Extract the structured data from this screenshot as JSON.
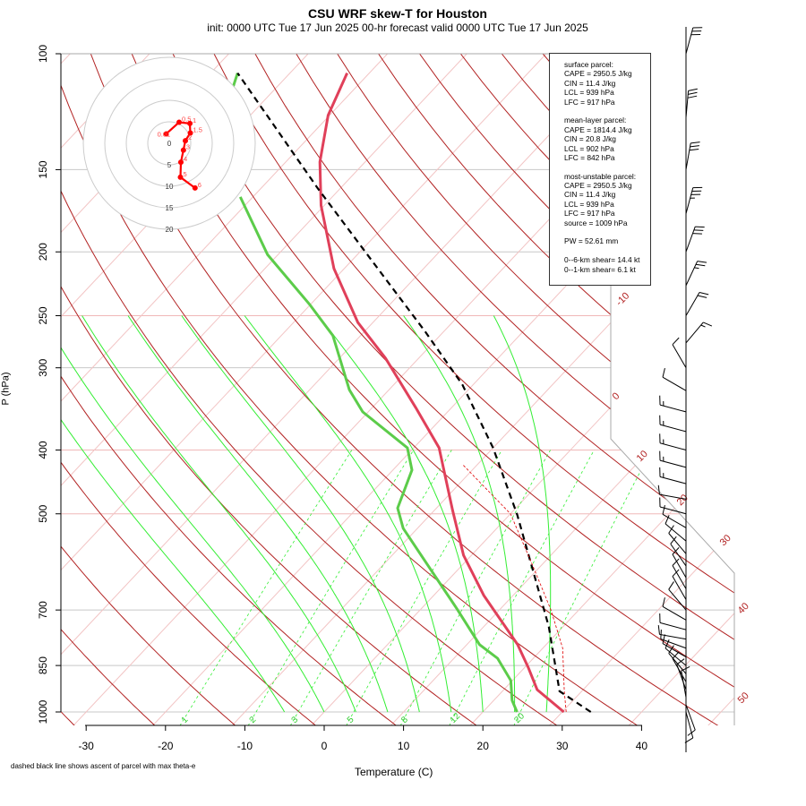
{
  "title": "CSU WRF skew-T for Houston",
  "subtitle": "init: 0000 UTC Tue 17 Jun 2025     00-hr forecast valid 0000 UTC Tue 17 Jun 2025",
  "footnote": "dashed black line shows ascent of parcel with max theta-e",
  "info": {
    "lines": [
      "surface parcel:",
      "CAPE = 2950.5 J/kg",
      "CIN = 11.4 J/kg",
      "LCL = 939 hPa",
      "LFC = 917 hPa",
      "",
      "mean-layer parcel:",
      "CAPE = 1814.4 J/kg",
      "CIN = 20.8 J/kg",
      "LCL = 902 hPa",
      "LFC = 842 hPa",
      "",
      "most-unstable parcel:",
      "CAPE = 2950.5 J/kg",
      "CIN = 11.4 J/kg",
      "LCL = 939 hPa",
      "LFC = 917 hPa",
      "source = 1009 hPa",
      "",
      "PW =  52.61 mm",
      "",
      "0--6-km shear= 14.4 kt",
      "0--1-km shear= 6.1 kt"
    ]
  },
  "chart_data": {
    "type": "line",
    "subtype": "skew-T log-p",
    "xlabel": "Temperature (C)",
    "ylabel": "P (hPa)",
    "x_ticks": [
      "-30",
      "-20",
      "-10",
      "0",
      "10",
      "20",
      "30",
      "40"
    ],
    "x_tick_values": [
      -30,
      -20,
      -10,
      0,
      10,
      20,
      30,
      40
    ],
    "y_ticks": [
      "100",
      "150",
      "200",
      "250",
      "300",
      "400",
      "500",
      "700",
      "850",
      "1000"
    ],
    "y_tick_values": [
      100,
      150,
      200,
      250,
      300,
      400,
      500,
      700,
      850,
      1000
    ],
    "isotherm_labels": [
      "-10",
      "0",
      "10",
      "20",
      "30",
      "40",
      "50"
    ],
    "mixing_ratio_labels": [
      "1",
      "2",
      "3",
      "5",
      "8",
      "12",
      "20"
    ],
    "series": [
      {
        "name": "temperature",
        "color": "#e0405a",
        "p": [
          1000,
          925,
          855,
          790,
          665,
          578,
          494,
          397,
          345,
          290,
          256,
          212,
          170,
          146,
          124,
          107
        ],
        "T": [
          30.2,
          24.2,
          20.4,
          16.4,
          6.3,
          -1.0,
          -7.7,
          -16.8,
          -24.5,
          -34.2,
          -41.9,
          -51.3,
          -60.4,
          -65.7,
          -70.2,
          -72.8
        ]
      },
      {
        "name": "dewpoint",
        "color": "#5ccc4a",
        "p": [
          1000,
          960,
          896,
          829,
          790,
          697,
          635,
          526,
          490,
          429,
          397,
          350,
          324,
          268,
          240,
          202,
          165
        ],
        "T": [
          24.3,
          22.3,
          19.8,
          15.5,
          11.6,
          4.5,
          -0.9,
          -11.8,
          -14.9,
          -17.6,
          -20.8,
          -30.7,
          -35.0,
          -43.5,
          -50.2,
          -61.3,
          -71.6
        ]
      },
      {
        "name": "dewpoint-upper",
        "color": "#5ccc4a",
        "p": [
          115,
          107
        ],
        "T": [
          -85.0,
          -86.6
        ]
      },
      {
        "name": "parcel",
        "color": "#000000",
        "p": [
          1000,
          930,
          742,
          502,
          397,
          318,
          264,
          219,
          160,
          107
        ],
        "T": [
          33.6,
          27.2,
          18.2,
          1.0,
          -10.0,
          -21.4,
          -32.4,
          -43.8,
          -62.9,
          -86.6
        ]
      },
      {
        "name": "parcel-virtual",
        "color": "#e00000",
        "p": [
          1000,
          930,
          800,
          700,
          600,
          500,
          420
        ],
        "T": [
          30.5,
          27.8,
          22.5,
          16.5,
          9.0,
          0.0,
          -12.0
        ]
      }
    ],
    "winds": [
      [
        100,
        15,
        30
      ],
      [
        125,
        5,
        30
      ],
      [
        150,
        10,
        30
      ],
      [
        175,
        15,
        35
      ],
      [
        200,
        20,
        30
      ],
      [
        225,
        25,
        25
      ],
      [
        250,
        30,
        20
      ],
      [
        275,
        40,
        15
      ],
      [
        300,
        330,
        10
      ],
      [
        325,
        300,
        10
      ],
      [
        350,
        285,
        15
      ],
      [
        375,
        285,
        15
      ],
      [
        400,
        285,
        15
      ],
      [
        425,
        285,
        15
      ],
      [
        450,
        285,
        15
      ],
      [
        475,
        280,
        10
      ],
      [
        500,
        285,
        10
      ],
      [
        525,
        300,
        10
      ],
      [
        550,
        310,
        10
      ],
      [
        575,
        320,
        10
      ],
      [
        600,
        325,
        10
      ],
      [
        625,
        330,
        10
      ],
      [
        650,
        330,
        10
      ],
      [
        675,
        330,
        10
      ],
      [
        700,
        320,
        10
      ],
      [
        725,
        300,
        10
      ],
      [
        750,
        285,
        10
      ],
      [
        775,
        280,
        10
      ],
      [
        800,
        290,
        10
      ],
      [
        825,
        300,
        10
      ],
      [
        850,
        310,
        10
      ],
      [
        875,
        320,
        10
      ],
      [
        900,
        330,
        10
      ],
      [
        925,
        340,
        10
      ],
      [
        950,
        350,
        10
      ],
      [
        975,
        160,
        10
      ],
      [
        1000,
        165,
        10
      ]
    ],
    "hodograph": {
      "ring_labels": [
        "0",
        "5",
        "10",
        "15",
        "20"
      ],
      "ring_values": [
        0,
        5,
        10,
        15,
        20
      ],
      "points": [
        {
          "label": "0.01",
          "u": -0.7,
          "v": 2.2
        },
        {
          "label": "0.5",
          "u": 2.3,
          "v": 4.9
        },
        {
          "label": "1",
          "u": 4.8,
          "v": 4.6
        },
        {
          "label": "1.5",
          "u": 4.9,
          "v": 2.4
        },
        {
          "label": "2",
          "u": 3.75,
          "v": 0.6
        },
        {
          "label": "3",
          "u": 3.3,
          "v": -1.6
        },
        {
          "label": "4",
          "u": 2.7,
          "v": -4.4
        },
        {
          "label": "5",
          "u": 2.6,
          "v": -7.9
        },
        {
          "label": "6",
          "u": 6.0,
          "v": -10.4
        }
      ]
    }
  }
}
